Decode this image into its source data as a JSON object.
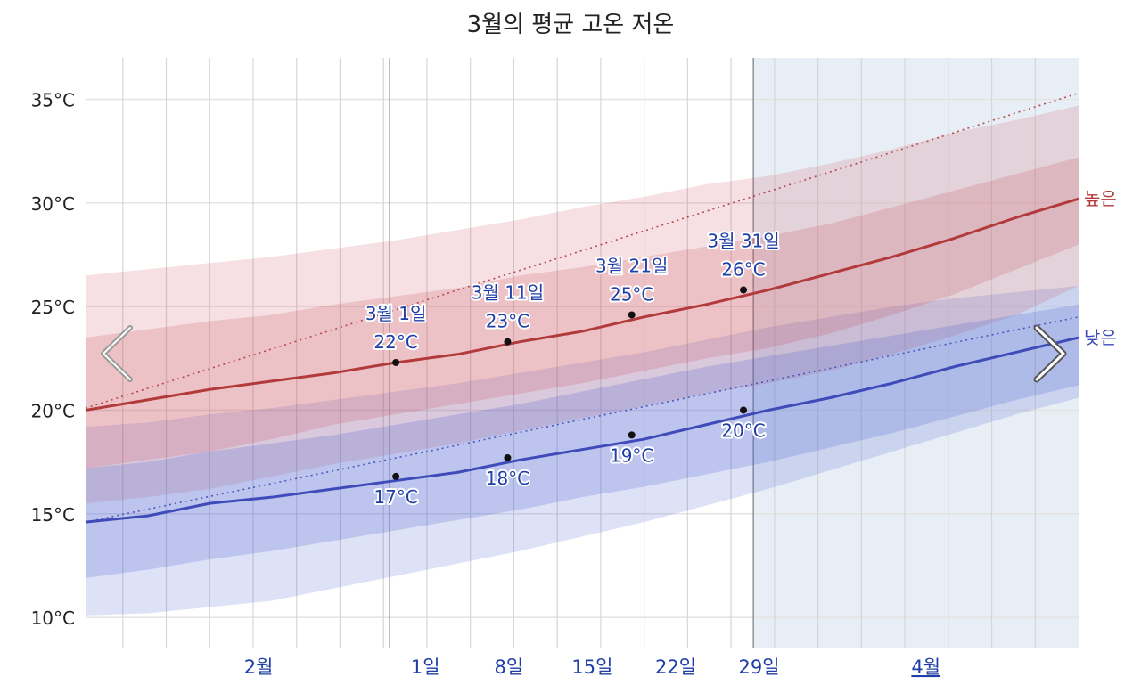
{
  "title": "3월의 평균 고온 저온",
  "colors": {
    "high": "#b23a3a",
    "low": "#3e4bb8",
    "high_band": "#c94a5a",
    "low_band": "#4a5fd0",
    "annotation": "#1f3fa6",
    "future_shade": "#e8eef5"
  },
  "nav": {
    "prev_icon": "chevron-left-icon",
    "next_icon": "chevron-right-icon"
  },
  "chart_data": {
    "type": "line",
    "title": "3월의 평균 고온 저온",
    "x_axis": {
      "range": [
        "2월 1일",
        "4월 5일"
      ],
      "tick_labels": [
        "2월",
        "1일",
        "8일",
        "15일",
        "22일",
        "29일",
        "4월"
      ],
      "tick_days": [
        14,
        28,
        35,
        42,
        49,
        56,
        70
      ],
      "start_label": "1월 27일 (approx.)",
      "shaded_after": "3월 29일"
    },
    "y_axis": {
      "unit": "°C",
      "range": [
        8.5,
        37
      ],
      "ticks": [
        "10°C",
        "15°C",
        "20°C",
        "25°C",
        "30°C",
        "35°C"
      ],
      "tick_values": [
        10,
        15,
        20,
        25,
        30,
        35
      ]
    },
    "grid": true,
    "series": [
      {
        "name": "높은",
        "color": "#b23a3a",
        "x_days": [
          0,
          5,
          10,
          15,
          20,
          25,
          30,
          35,
          40,
          45,
          50,
          55,
          60,
          65,
          70,
          75,
          80
        ],
        "values": [
          20.0,
          20.5,
          21.0,
          21.4,
          21.8,
          22.3,
          22.7,
          23.3,
          23.8,
          24.5,
          25.1,
          25.8,
          26.6,
          27.4,
          28.3,
          29.3,
          30.2
        ],
        "band_inner": {
          "lower": [
            17.2,
            17.6,
            18.0,
            18.6,
            19.3,
            19.8,
            20.3,
            20.8,
            21.3,
            21.9,
            22.5,
            23.0,
            23.7,
            24.6,
            25.6,
            26.8,
            28.0
          ],
          "upper": [
            23.5,
            23.9,
            24.3,
            24.6,
            25.1,
            25.5,
            25.9,
            26.5,
            26.9,
            27.4,
            27.9,
            28.4,
            29.0,
            29.8,
            30.6,
            31.4,
            32.2
          ]
        },
        "band_outer": {
          "lower": [
            15.5,
            15.8,
            16.2,
            16.8,
            17.4,
            17.9,
            18.4,
            19.0,
            19.6,
            20.2,
            20.8,
            21.3,
            21.9,
            22.7,
            23.6,
            24.6,
            26.0
          ],
          "upper": [
            26.5,
            26.8,
            27.1,
            27.4,
            27.8,
            28.2,
            28.7,
            29.2,
            29.8,
            30.3,
            30.9,
            31.3,
            31.9,
            32.6,
            33.4,
            34.0,
            34.7
          ]
        },
        "trend": {
          "from_day": 0,
          "from_value": 20.1,
          "to_day": 80,
          "to_value": 35.3
        },
        "annotations": [
          {
            "date": "3월 1일",
            "day": 25,
            "value": 22.3,
            "label": "22°C"
          },
          {
            "date": "3월 11일",
            "day": 34,
            "value": 23.3,
            "label": "23°C"
          },
          {
            "date": "3월 21일",
            "day": 44,
            "value": 24.6,
            "label": "25°C"
          },
          {
            "date": "3월 31일",
            "day": 53,
            "value": 25.8,
            "label": "26°C"
          }
        ]
      },
      {
        "name": "낮은",
        "color": "#3e4bb8",
        "x_days": [
          0,
          5,
          10,
          15,
          20,
          25,
          30,
          35,
          40,
          45,
          50,
          55,
          60,
          65,
          70,
          75,
          80
        ],
        "values": [
          14.6,
          14.9,
          15.5,
          15.8,
          16.2,
          16.6,
          17.0,
          17.6,
          18.1,
          18.6,
          19.3,
          20.0,
          20.6,
          21.3,
          22.1,
          22.8,
          23.5
        ],
        "band_inner": {
          "lower": [
            11.9,
            12.3,
            12.8,
            13.2,
            13.7,
            14.2,
            14.7,
            15.2,
            15.8,
            16.3,
            16.9,
            17.5,
            18.2,
            18.9,
            19.7,
            20.5,
            21.2
          ],
          "upper": [
            17.2,
            17.5,
            18.0,
            18.4,
            18.8,
            19.3,
            19.8,
            20.3,
            20.9,
            21.5,
            22.1,
            22.6,
            23.1,
            23.6,
            24.1,
            24.6,
            25.1
          ]
        },
        "band_outer": {
          "lower": [
            10.1,
            10.2,
            10.5,
            10.8,
            11.4,
            12.0,
            12.6,
            13.2,
            13.9,
            14.6,
            15.4,
            16.2,
            17.1,
            18.0,
            18.9,
            19.8,
            20.6
          ],
          "upper": [
            19.2,
            19.4,
            19.8,
            20.1,
            20.5,
            20.9,
            21.3,
            21.8,
            22.3,
            22.8,
            23.4,
            24.0,
            24.5,
            25.0,
            25.4,
            25.7,
            26.0
          ]
        },
        "trend": {
          "from_day": 0,
          "from_value": 14.6,
          "to_day": 80,
          "to_value": 24.5
        },
        "annotations": [
          {
            "date": "3월 1일",
            "day": 25,
            "value": 16.8,
            "label": "17°C"
          },
          {
            "date": "3월 11일",
            "day": 34,
            "value": 17.7,
            "label": "18°C"
          },
          {
            "date": "3월 21일",
            "day": 44,
            "value": 18.8,
            "label": "19°C"
          },
          {
            "date": "3월 31일",
            "day": 53,
            "value": 20.0,
            "label": "20°C"
          }
        ]
      }
    ]
  }
}
